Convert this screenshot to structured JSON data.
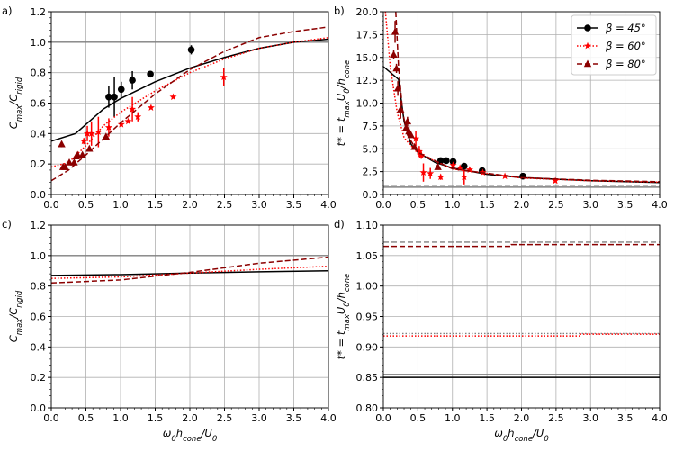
{
  "chart_data": [
    {
      "panel": "a)",
      "type": "line+scatter",
      "xlabel": "",
      "ylabel": "C_{max}/C_{rigid}",
      "xlim": [
        0,
        4
      ],
      "ylim": [
        0,
        1.2
      ],
      "xticks": [
        "0.0",
        "0.5",
        "1.0",
        "1.5",
        "2.0",
        "2.5",
        "3.0",
        "3.5",
        "4.0"
      ],
      "yticks": [
        "0.0",
        "0.2",
        "0.4",
        "0.6",
        "0.8",
        "1.0",
        "1.2"
      ],
      "grid": true,
      "hlines": [
        {
          "y": 1.0,
          "color": "#808080",
          "style": "solid"
        }
      ],
      "series": [
        {
          "name": "β = 45°",
          "color": "#000000",
          "style": "solid",
          "marker": "circle",
          "curve": [
            [
              0,
              0.35
            ],
            [
              0.35,
              0.4
            ],
            [
              0.5,
              0.46
            ],
            [
              0.75,
              0.56
            ],
            [
              1,
              0.63
            ],
            [
              1.5,
              0.74
            ],
            [
              2,
              0.83
            ],
            [
              2.5,
              0.9
            ],
            [
              3,
              0.96
            ],
            [
              3.5,
              1.0
            ],
            [
              4,
              1.02
            ]
          ],
          "points": [
            [
              0.83,
              0.64,
              0.07
            ],
            [
              0.91,
              0.64,
              0.13
            ],
            [
              1.01,
              0.69,
              0.05
            ],
            [
              1.17,
              0.75,
              0.06
            ],
            [
              1.43,
              0.79,
              0
            ],
            [
              2.02,
              0.95,
              0.03
            ]
          ]
        },
        {
          "name": "β = 60°",
          "color": "#ff0000",
          "style": "dotted",
          "marker": "star",
          "curve": [
            [
              0,
              0.18
            ],
            [
              0.25,
              0.21
            ],
            [
              0.5,
              0.32
            ],
            [
              0.75,
              0.45
            ],
            [
              1,
              0.54
            ],
            [
              1.5,
              0.68
            ],
            [
              2,
              0.8
            ],
            [
              2.5,
              0.89
            ],
            [
              3,
              0.96
            ],
            [
              3.5,
              1.0
            ],
            [
              4,
              1.03
            ]
          ],
          "points": [
            [
              0.47,
              0.35,
              0.02
            ],
            [
              0.52,
              0.4,
              0.05
            ],
            [
              0.58,
              0.4,
              0.08
            ],
            [
              0.68,
              0.41,
              0.1
            ],
            [
              0.83,
              0.44,
              0.06
            ],
            [
              1.01,
              0.46,
              0.01
            ],
            [
              1.11,
              0.48,
              0.01
            ],
            [
              1.17,
              0.56,
              0.08
            ],
            [
              1.25,
              0.51,
              0.03
            ],
            [
              1.44,
              0.57,
              0
            ],
            [
              1.76,
              0.64,
              0
            ],
            [
              2.49,
              0.77,
              0.06
            ]
          ]
        },
        {
          "name": "β = 80°",
          "color": "#8b0000",
          "style": "dashed",
          "marker": "triangle",
          "curve": [
            [
              0,
              0.09
            ],
            [
              0.25,
              0.16
            ],
            [
              0.5,
              0.26
            ],
            [
              1,
              0.47
            ],
            [
              1.5,
              0.66
            ],
            [
              2,
              0.82
            ],
            [
              2.5,
              0.94
            ],
            [
              3,
              1.03
            ],
            [
              3.5,
              1.07
            ],
            [
              4,
              1.1
            ]
          ],
          "points": [
            [
              0.15,
              0.33,
              0.02
            ],
            [
              0.17,
              0.18,
              0
            ],
            [
              0.2,
              0.18,
              0
            ],
            [
              0.26,
              0.21,
              0
            ],
            [
              0.33,
              0.21,
              0
            ],
            [
              0.36,
              0.25,
              0
            ],
            [
              0.38,
              0.26,
              0
            ],
            [
              0.45,
              0.26,
              0
            ],
            [
              0.55,
              0.3,
              0
            ],
            [
              0.79,
              0.38,
              0
            ]
          ]
        }
      ]
    },
    {
      "panel": "b)",
      "type": "line+scatter",
      "xlabel": "",
      "ylabel": "t* = t_{max}U_0/h_{cone}",
      "xlim": [
        0,
        4
      ],
      "ylim": [
        0,
        20
      ],
      "xticks": [
        "0.0",
        "0.5",
        "1.0",
        "1.5",
        "2.0",
        "2.5",
        "3.0",
        "3.5",
        "4.0"
      ],
      "yticks": [
        "0.0",
        "2.5",
        "5.0",
        "7.5",
        "10.0",
        "12.5",
        "15.0",
        "17.5",
        "20.0"
      ],
      "grid": true,
      "legend": {
        "position": "top-right",
        "entries": [
          "β = 45°",
          "β = 60°",
          "β = 80°"
        ]
      },
      "hlines": [
        {
          "y": 1.0,
          "color": "#808080",
          "style": "dashed"
        },
        {
          "y": 0.8,
          "color": "#808080",
          "style": "solid"
        }
      ],
      "series": [
        {
          "name": "β = 45°",
          "color": "#000000",
          "style": "solid",
          "marker": "circle",
          "curve": [
            [
              0,
              14
            ],
            [
              0.22,
              12.6
            ],
            [
              0.3,
              8
            ],
            [
              0.4,
              5.5
            ],
            [
              0.5,
              4.6
            ],
            [
              0.75,
              3.5
            ],
            [
              1,
              2.9
            ],
            [
              1.5,
              2.2
            ],
            [
              2,
              1.85
            ],
            [
              3,
              1.5
            ],
            [
              4,
              1.3
            ]
          ],
          "points": [
            [
              0.83,
              3.7,
              0
            ],
            [
              0.91,
              3.7,
              0
            ],
            [
              1.01,
              3.6,
              0
            ],
            [
              1.17,
              3.1,
              0
            ],
            [
              1.43,
              2.6,
              0
            ],
            [
              2.02,
              2.0,
              0
            ]
          ]
        },
        {
          "name": "β = 60°",
          "color": "#ff0000",
          "style": "dotted",
          "marker": "star",
          "curve": [
            [
              0.03,
              20
            ],
            [
              0.1,
              14
            ],
            [
              0.2,
              9
            ],
            [
              0.3,
              6.2
            ],
            [
              0.5,
              4.5
            ],
            [
              1,
              2.8
            ],
            [
              2,
              1.8
            ],
            [
              3,
              1.5
            ],
            [
              4,
              1.35
            ]
          ],
          "points": [
            [
              0.47,
              6.1,
              0.8
            ],
            [
              0.52,
              4.7,
              0.6
            ],
            [
              0.55,
              4.3,
              0.4
            ],
            [
              0.58,
              2.4,
              1.0
            ],
            [
              0.68,
              2.3,
              0.6
            ],
            [
              0.83,
              1.9,
              0.3
            ],
            [
              1.01,
              3.2,
              0.3
            ],
            [
              1.11,
              2.9,
              0.2
            ],
            [
              1.17,
              1.9,
              0.8
            ],
            [
              1.25,
              2.7,
              0.2
            ],
            [
              1.44,
              2.4,
              0.2
            ],
            [
              1.76,
              2.0,
              0
            ],
            [
              2.49,
              1.5,
              0
            ]
          ]
        },
        {
          "name": "β = 80°",
          "color": "#8b0000",
          "style": "dashed",
          "marker": "triangle",
          "curve": [
            [
              0.18,
              20
            ],
            [
              0.22,
              14
            ],
            [
              0.28,
              9
            ],
            [
              0.35,
              6.5
            ],
            [
              0.5,
              4.6
            ],
            [
              1,
              2.8
            ],
            [
              2,
              1.85
            ],
            [
              3,
              1.55
            ],
            [
              4,
              1.4
            ]
          ],
          "points": [
            [
              0.15,
              15.3,
              0.5
            ],
            [
              0.17,
              17.8,
              1.2
            ],
            [
              0.19,
              13.8,
              0.5
            ],
            [
              0.21,
              11.6,
              0.8
            ],
            [
              0.25,
              9.3,
              1.0
            ],
            [
              0.33,
              7.3,
              0.4
            ],
            [
              0.35,
              8.0,
              0.5
            ],
            [
              0.37,
              6.9,
              0.6
            ],
            [
              0.4,
              6.5,
              0.3
            ],
            [
              0.45,
              5.2,
              0.2
            ],
            [
              0.79,
              3.0,
              0
            ]
          ]
        }
      ]
    },
    {
      "panel": "c)",
      "type": "line",
      "xlabel": "ω_0h_{cone}/U_0",
      "ylabel": "C_{max}/C_{rigid}",
      "xlim": [
        0,
        4
      ],
      "ylim": [
        0,
        1.2
      ],
      "xticks": [
        "0.0",
        "0.5",
        "1.0",
        "1.5",
        "2.0",
        "2.5",
        "3.0",
        "3.5",
        "4.0"
      ],
      "yticks": [
        "0.0",
        "0.2",
        "0.4",
        "0.6",
        "0.8",
        "1.0",
        "1.2"
      ],
      "grid": true,
      "hlines": [
        {
          "y": 1.0,
          "color": "#808080",
          "style": "solid"
        }
      ],
      "series": [
        {
          "name": "β = 45°",
          "color": "#000000",
          "style": "solid",
          "curve": [
            [
              0,
              0.87
            ],
            [
              1,
              0.875
            ],
            [
              2,
              0.885
            ],
            [
              3,
              0.893
            ],
            [
              4,
              0.9
            ]
          ]
        },
        {
          "name": "β = 60°",
          "color": "#ff0000",
          "style": "dotted",
          "curve": [
            [
              0,
              0.85
            ],
            [
              1,
              0.86
            ],
            [
              1.8,
              0.88
            ],
            [
              3,
              0.91
            ],
            [
              4,
              0.93
            ]
          ]
        },
        {
          "name": "β = 80°",
          "color": "#8b0000",
          "style": "dashed",
          "curve": [
            [
              0,
              0.82
            ],
            [
              1,
              0.84
            ],
            [
              2,
              0.89
            ],
            [
              3,
              0.95
            ],
            [
              4,
              0.99
            ]
          ]
        }
      ]
    },
    {
      "panel": "d)",
      "type": "line",
      "xlabel": "ω_0h_{cone}/U_0",
      "ylabel": "t* = t_{max}U_0/h_{cone}",
      "xlim": [
        0,
        4
      ],
      "ylim": [
        0.8,
        1.1
      ],
      "xticks": [
        "0.0",
        "0.5",
        "1.0",
        "1.5",
        "2.0",
        "2.5",
        "3.0",
        "3.5",
        "4.0"
      ],
      "yticks": [
        "0.80",
        "0.85",
        "0.90",
        "0.95",
        "1.00",
        "1.05",
        "1.10"
      ],
      "grid": true,
      "hlines": [
        {
          "y": 1.072,
          "color": "#808080",
          "style": "dashed"
        },
        {
          "y": 0.922,
          "color": "#808080",
          "style": "dotted"
        },
        {
          "y": 0.855,
          "color": "#808080",
          "style": "solid"
        }
      ],
      "series": [
        {
          "name": "β = 45°",
          "color": "#000000",
          "style": "solid",
          "curve": [
            [
              0,
              0.85
            ],
            [
              4,
              0.85
            ]
          ]
        },
        {
          "name": "β = 60°",
          "color": "#ff0000",
          "style": "dotted",
          "curve": [
            [
              0,
              0.918
            ],
            [
              2.85,
              0.918
            ],
            [
              2.85,
              0.921
            ],
            [
              4,
              0.921
            ]
          ]
        },
        {
          "name": "β = 80°",
          "color": "#8b0000",
          "style": "dashed",
          "curve": [
            [
              0,
              1.065
            ],
            [
              1.85,
              1.065
            ],
            [
              1.85,
              1.068
            ],
            [
              4,
              1.068
            ]
          ]
        }
      ]
    }
  ]
}
